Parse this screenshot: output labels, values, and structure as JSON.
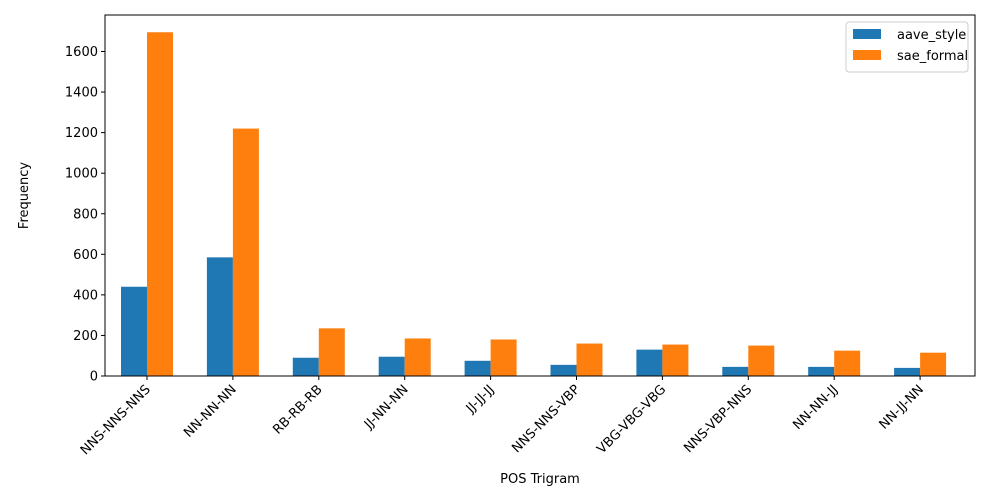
{
  "chart_data": {
    "type": "bar",
    "title": "",
    "xlabel": "POS Trigram",
    "ylabel": "Frequency",
    "categories": [
      "NNS-NNS-NNS",
      "NN-NN-NN",
      "RB-RB-RB",
      "JJ-NN-NN",
      "JJ-JJ-JJ",
      "NNS-NNS-VBP",
      "VBG-VBG-VBG",
      "NNS-VBP-NNS",
      "NN-NN-JJ",
      "NN-JJ-NN"
    ],
    "series": [
      {
        "name": "aave_style",
        "color": "#1f77b4",
        "values": [
          440,
          585,
          90,
          95,
          75,
          55,
          130,
          45,
          45,
          40
        ]
      },
      {
        "name": "sae_formal",
        "color": "#ff7f0e",
        "values": [
          1695,
          1220,
          235,
          185,
          180,
          160,
          155,
          150,
          125,
          115
        ]
      }
    ],
    "ylim": [
      0,
      1780
    ],
    "yticks": [
      0,
      200,
      400,
      600,
      800,
      1000,
      1200,
      1400,
      1600
    ],
    "grid": false,
    "legend_position": "top-right"
  }
}
